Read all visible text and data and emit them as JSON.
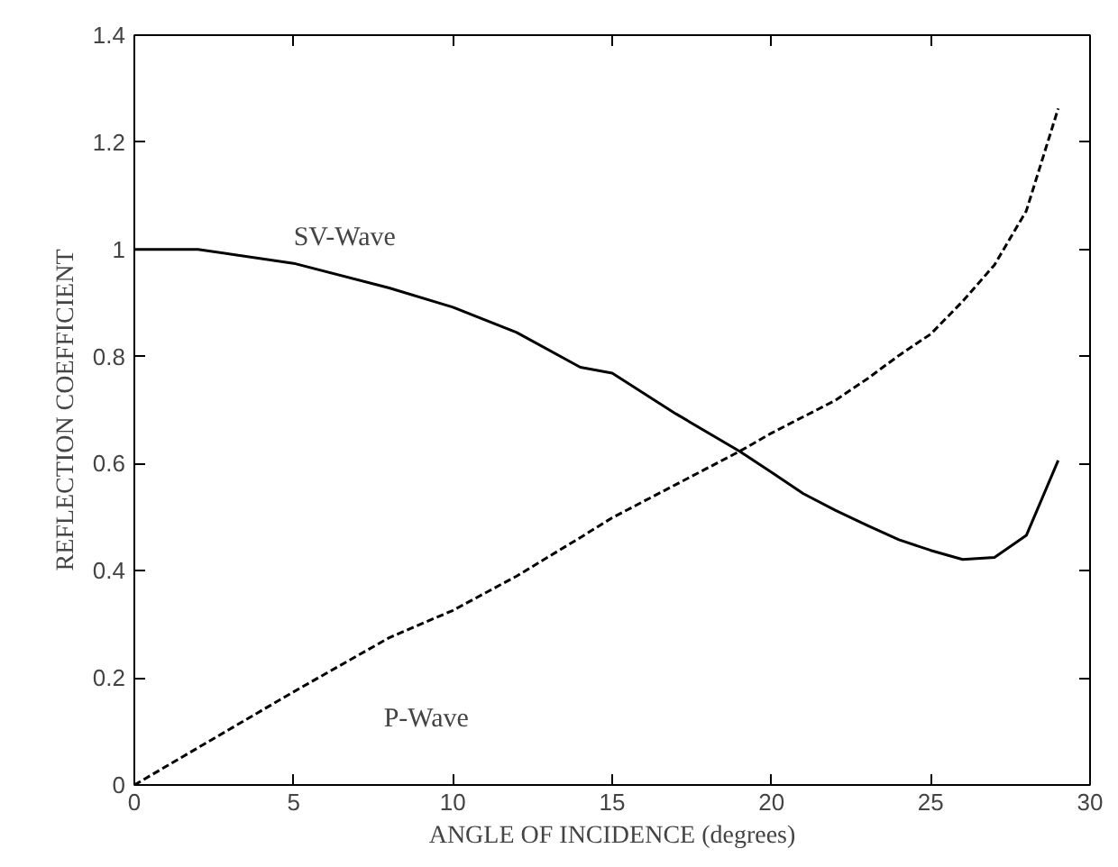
{
  "chart_data": {
    "type": "line",
    "xlabel": "ANGLE OF INCIDENCE (degrees)",
    "ylabel": "REFLECTION COEFFICIENT",
    "xlim": [
      0,
      30
    ],
    "ylim": [
      0,
      1.4
    ],
    "xticks": [
      0,
      5,
      10,
      15,
      20,
      25,
      30
    ],
    "yticks": [
      0,
      0.2,
      0.4,
      0.6,
      0.8,
      {
        "value": 1,
        "label": "1"
      },
      1.2,
      1.4
    ],
    "grid": false,
    "legend": false,
    "marker": "none",
    "series": [
      {
        "name": "SV-Wave",
        "color": "#000000",
        "line_style": "solid",
        "x": [
          0,
          2,
          5,
          8,
          10,
          12,
          14,
          15,
          17,
          19,
          20,
          21,
          22,
          23,
          24,
          25,
          26,
          27,
          28,
          29
        ],
        "values": [
          1.0,
          1.0,
          0.974,
          0.928,
          0.892,
          0.845,
          0.78,
          0.769,
          0.693,
          0.623,
          0.584,
          0.544,
          0.513,
          0.485,
          0.458,
          0.438,
          0.421,
          0.425,
          0.466,
          0.606
        ]
      },
      {
        "name": "P-Wave",
        "color": "#000000",
        "line_style": "dashed",
        "x": [
          0,
          5,
          8,
          10,
          12,
          14,
          15,
          17,
          19,
          20,
          22,
          23,
          24,
          25,
          26,
          27,
          28,
          29
        ],
        "values": [
          0,
          0.174,
          0.275,
          0.326,
          0.39,
          0.462,
          0.499,
          0.561,
          0.623,
          0.657,
          0.718,
          0.758,
          0.802,
          0.842,
          0.903,
          0.971,
          1.072,
          1.263
        ]
      }
    ]
  }
}
